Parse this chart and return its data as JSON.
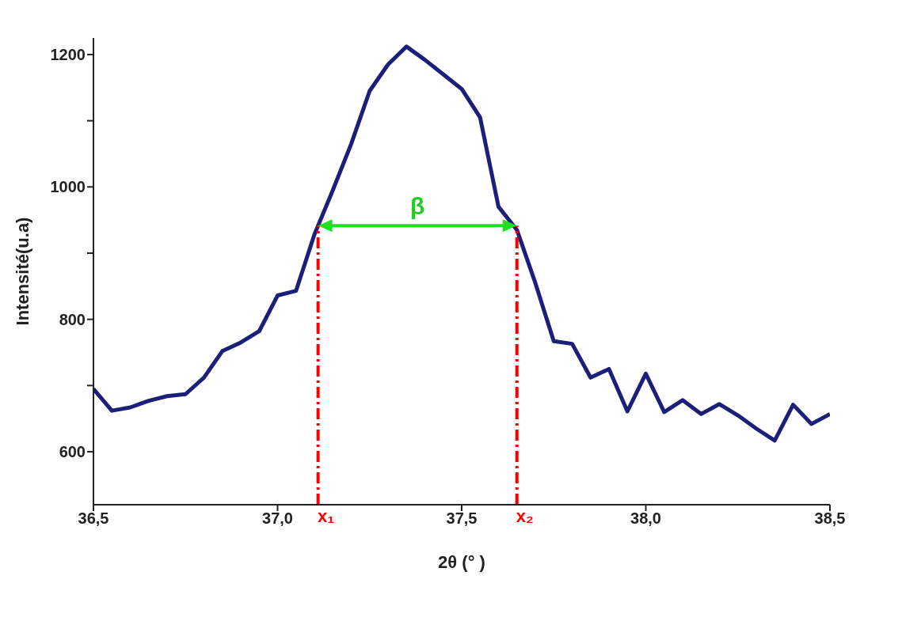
{
  "chart_data": {
    "type": "line",
    "xlabel": "2θ (° )",
    "ylabel": "Intensité(u.a)",
    "x": [
      36.5,
      36.55,
      36.6,
      36.65,
      36.7,
      36.75,
      36.8,
      36.85,
      36.9,
      36.95,
      37.0,
      37.05,
      37.1,
      37.15,
      37.2,
      37.25,
      37.3,
      37.35,
      37.4,
      37.45,
      37.5,
      37.55,
      37.6,
      37.65,
      37.7,
      37.75,
      37.8,
      37.85,
      37.9,
      37.95,
      38.0,
      38.05,
      38.1,
      38.15,
      38.2,
      38.25,
      38.3,
      38.35,
      38.4,
      38.45,
      38.5
    ],
    "series": [
      {
        "color": "#1a1f7a",
        "values": [
          695,
          662,
          667,
          677,
          684,
          687,
          712,
          752,
          765,
          782,
          836,
          843,
          928,
          995,
          1065,
          1145,
          1185,
          1212,
          1192,
          1170,
          1148,
          1105,
          970,
          935,
          855,
          767,
          763,
          712,
          725,
          661,
          718,
          660,
          678,
          657,
          672,
          655,
          635,
          617,
          671,
          642,
          657
        ]
      }
    ],
    "xlim": [
      36.5,
      38.5
    ],
    "xticks": [
      {
        "value": 36.5,
        "label": "36,5"
      },
      {
        "value": 37.0,
        "label": "37,0"
      },
      {
        "value": 37.5,
        "label": "37,5"
      },
      {
        "value": 38.0,
        "label": "38,0"
      },
      {
        "value": 38.5,
        "label": "38,5"
      }
    ],
    "ylim": [
      520,
      1225
    ],
    "yticks": [
      600,
      {
        "value": 700,
        "label": null
      },
      800,
      {
        "value": 900,
        "label": null
      },
      1000,
      {
        "value": 1100,
        "label": null
      },
      1200
    ],
    "ref_lines": [
      {
        "axis": "x",
        "value": 37.11,
        "label": "x₁",
        "color": "#ff0000",
        "line_style": "dashed"
      },
      {
        "axis": "x",
        "value": 37.65,
        "label": "x₂",
        "color": "#ff0000",
        "line_style": "dashed"
      }
    ],
    "annotations": [
      "β"
    ],
    "grid": false,
    "legend": false,
    "marker": "none",
    "line_style": "solid"
  }
}
